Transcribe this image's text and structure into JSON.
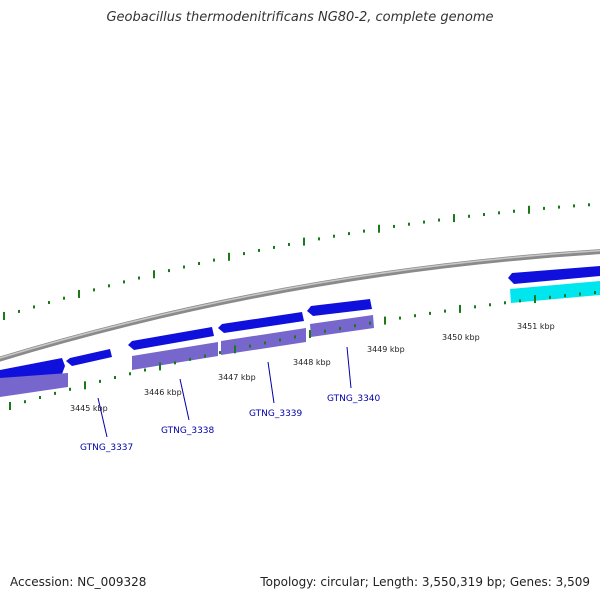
{
  "title": "Geobacillus thermodenitrificans NG80-2, complete genome",
  "footer": {
    "accession": "Accession: NC_009328",
    "summary": "Topology: circular; Length: 3,550,319 bp; Genes: 3,509"
  },
  "colors": {
    "backbone": "#8a8a8a",
    "gene_strand": "#1010dd",
    "gene_fill_secondary": "#7766cc",
    "gene_cyan": "#00e6ee",
    "tick": "#1a7a1a",
    "label_line": "#0000aa"
  },
  "scale": {
    "labels": [
      "3445 kbp",
      "3446 kbp",
      "3447 kbp",
      "3448 kbp",
      "3449 kbp",
      "3450 kbp",
      "3451 kbp"
    ]
  },
  "genes": [
    {
      "id": "GTNG_3337"
    },
    {
      "id": "GTNG_3338"
    },
    {
      "id": "GTNG_3339"
    },
    {
      "id": "GTNG_3340"
    }
  ]
}
